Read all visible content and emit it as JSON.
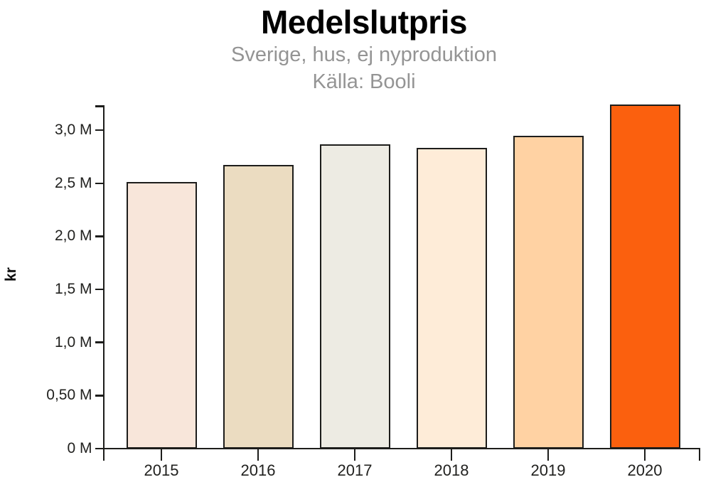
{
  "header": {
    "title": "Medelslutpris",
    "subtitle": "Sverige, hus, ej nyproduktion",
    "source": "Källa: Booli"
  },
  "chart_data": {
    "type": "bar",
    "title": "Medelslutpris",
    "subtitle": "Sverige, hus, ej nyproduktion",
    "source": "Källa: Booli",
    "ylabel": "kr",
    "unit_suffix": "M",
    "categories": [
      "2015",
      "2016",
      "2017",
      "2018",
      "2019",
      "2020"
    ],
    "values": [
      2.51,
      2.67,
      2.87,
      2.83,
      2.95,
      3.24
    ],
    "bar_colors": [
      "#f8e6da",
      "#ebdcc1",
      "#edebe3",
      "#feecd8",
      "#ffd2a3",
      "#fb600e"
    ],
    "ylim": [
      0,
      3.3
    ],
    "yticks": [
      {
        "value": 0,
        "label": "0 M"
      },
      {
        "value": 0.5,
        "label": "0,50 M"
      },
      {
        "value": 1.0,
        "label": "1,0 M"
      },
      {
        "value": 1.5,
        "label": "1,5 M"
      },
      {
        "value": 2.0,
        "label": "2,0 M"
      },
      {
        "value": 2.5,
        "label": "2,5 M"
      },
      {
        "value": 3.0,
        "label": "3,0 M"
      }
    ],
    "grid": false,
    "legend": "none"
  },
  "colors": {
    "axis": "#1d1d1b",
    "bar_border": "#1d1d1b",
    "tick_label": "#21211f",
    "subtitle_gray": "#949494",
    "highlight_bar": "#fb600e",
    "background": "#ffffff"
  }
}
